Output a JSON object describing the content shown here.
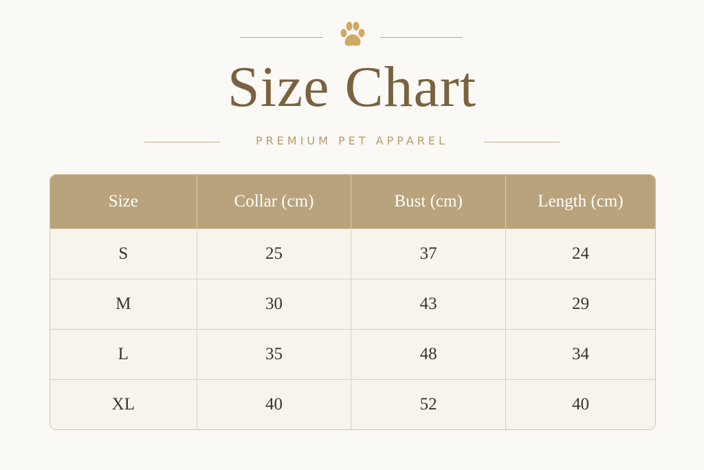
{
  "header": {
    "title": "Size Chart",
    "subtitle": "PREMIUM PET APPAREL"
  },
  "table": {
    "columns": [
      "Size",
      "Collar (cm)",
      "Bust (cm)",
      "Length (cm)"
    ],
    "rows": [
      [
        "S",
        "25",
        "37",
        "24"
      ],
      [
        "M",
        "30",
        "43",
        "29"
      ],
      [
        "L",
        "35",
        "48",
        "34"
      ],
      [
        "XL",
        "40",
        "52",
        "40"
      ]
    ]
  }
}
